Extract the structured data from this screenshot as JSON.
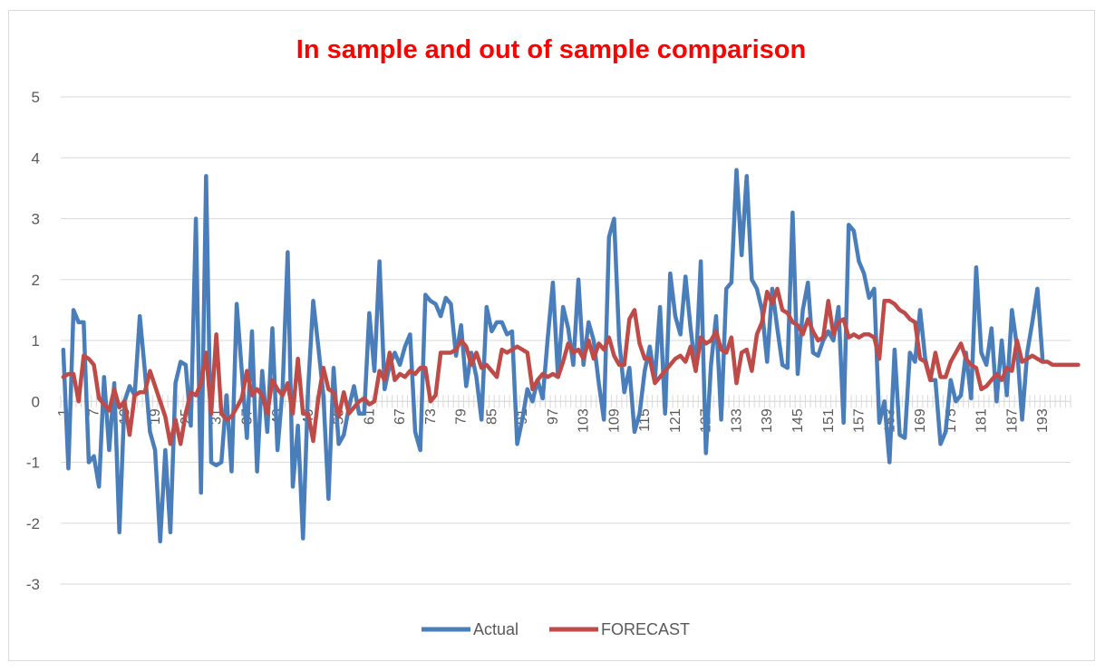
{
  "chart_data": {
    "type": "line",
    "title": "In sample and out of sample comparison",
    "xlabel": "",
    "ylabel": "",
    "ylim": [
      -3,
      5
    ],
    "yticks": [
      5,
      4,
      3,
      2,
      1,
      0,
      -1,
      -2,
      -3
    ],
    "x_tick_labels": [
      "1",
      "7",
      "13",
      "19",
      "25",
      "31",
      "37",
      "43",
      "49",
      "55",
      "61",
      "67",
      "73",
      "79",
      "85",
      "91",
      "97",
      "103",
      "109",
      "115",
      "121",
      "127",
      "133",
      "139",
      "145",
      "151",
      "157",
      "163",
      "169",
      "175",
      "181",
      "187",
      "193"
    ],
    "n_points": 198,
    "grid": true,
    "legend_position": "bottom",
    "series": [
      {
        "name": "Actual",
        "color": "#4a7ebb",
        "values": [
          0.85,
          -1.1,
          1.5,
          1.3,
          1.3,
          -1.0,
          -0.9,
          -1.4,
          0.4,
          -0.8,
          0.3,
          -2.15,
          0.0,
          0.25,
          0.1,
          1.4,
          0.5,
          -0.5,
          -0.8,
          -2.3,
          -0.8,
          -2.15,
          0.3,
          0.65,
          0.6,
          -0.4,
          3.0,
          -1.5,
          3.7,
          -1.0,
          -1.05,
          -1.0,
          0.1,
          -1.15,
          1.6,
          0.5,
          -0.6,
          1.15,
          -1.15,
          0.5,
          -0.5,
          1.2,
          -0.8,
          0.2,
          2.45,
          -1.4,
          -0.4,
          -2.25,
          0.2,
          1.65,
          0.9,
          0.1,
          -1.6,
          0.55,
          -0.7,
          -0.55,
          -0.1,
          0.25,
          -0.2,
          -0.2,
          1.45,
          0.5,
          2.3,
          0.2,
          0.6,
          0.8,
          0.6,
          0.9,
          1.1,
          -0.5,
          -0.8,
          1.75,
          1.65,
          1.6,
          1.4,
          1.7,
          1.6,
          0.75,
          1.25,
          0.25,
          0.8,
          0.4,
          -0.3,
          1.55,
          1.15,
          1.3,
          1.3,
          1.1,
          1.15,
          -0.7,
          -0.3,
          0.2,
          0.0,
          0.35,
          0.05,
          1.05,
          1.95,
          0.4,
          1.55,
          1.2,
          0.6,
          2.0,
          0.6,
          1.3,
          1.0,
          0.3,
          -0.3,
          2.7,
          3.0,
          1.0,
          0.15,
          0.55,
          -0.5,
          -0.2,
          0.5,
          0.9,
          0.35,
          1.55,
          -0.2,
          2.1,
          1.4,
          1.1,
          2.05,
          1.2,
          0.5,
          2.3,
          -0.85,
          0.6,
          1.4,
          -0.3,
          1.85,
          1.95,
          3.8,
          2.4,
          3.7,
          2.0,
          1.85,
          1.5,
          0.65,
          1.85,
          1.2,
          0.6,
          0.55,
          3.1,
          0.45,
          1.5,
          1.95,
          0.8,
          0.75,
          1.0,
          1.15,
          1.0,
          1.55,
          -0.35,
          2.9,
          2.8,
          2.3,
          2.1,
          1.7,
          1.85,
          -0.35,
          0.0,
          -1.0,
          0.85,
          -0.55,
          -0.6,
          0.8,
          0.65,
          1.5,
          0.7,
          0.35,
          0.35,
          -0.7,
          -0.5,
          0.35,
          0.0,
          0.1,
          0.8,
          0.05,
          2.2,
          0.8,
          0.6,
          1.2,
          0.0,
          1.0,
          0.1,
          1.5,
          0.9,
          -0.3,
          0.8,
          1.3,
          1.85,
          0.7
        ]
      },
      {
        "name": "FORECAST",
        "color": "#be4b48",
        "values": [
          0.4,
          0.45,
          0.45,
          0.0,
          0.75,
          0.7,
          0.6,
          0.05,
          -0.05,
          -0.15,
          0.2,
          -0.1,
          0.0,
          -0.55,
          0.1,
          0.15,
          0.15,
          0.5,
          0.25,
          0.0,
          -0.25,
          -0.7,
          -0.3,
          -0.7,
          -0.2,
          0.15,
          0.1,
          0.3,
          0.8,
          -0.2,
          1.1,
          -0.2,
          -0.3,
          -0.25,
          -0.1,
          0.05,
          0.5,
          0.1,
          0.2,
          0.1,
          -0.2,
          0.35,
          0.2,
          0.1,
          0.3,
          -0.2,
          0.7,
          -0.2,
          -0.2,
          -0.65,
          0.05,
          0.55,
          0.2,
          0.15,
          -0.25,
          0.15,
          -0.2,
          -0.1,
          0.0,
          0.05,
          -0.05,
          0.0,
          0.5,
          0.35,
          0.8,
          0.35,
          0.45,
          0.4,
          0.5,
          0.45,
          0.55,
          0.55,
          0.0,
          0.1,
          0.8,
          0.8,
          0.8,
          0.85,
          1.0,
          0.9,
          0.6,
          0.8,
          0.55,
          0.6,
          0.5,
          0.4,
          0.85,
          0.8,
          0.85,
          0.9,
          0.85,
          0.8,
          0.2,
          0.35,
          0.45,
          0.4,
          0.45,
          0.4,
          0.65,
          0.95,
          0.8,
          0.85,
          0.7,
          1.0,
          0.7,
          0.95,
          0.85,
          1.05,
          0.75,
          0.6,
          0.6,
          1.35,
          1.5,
          0.95,
          0.7,
          0.7,
          0.3,
          0.4,
          0.5,
          0.6,
          0.7,
          0.75,
          0.65,
          0.9,
          0.5,
          1.05,
          0.95,
          1.0,
          1.15,
          0.85,
          0.8,
          1.05,
          0.3,
          0.8,
          0.85,
          0.5,
          1.1,
          1.3,
          1.8,
          1.6,
          1.85,
          1.5,
          1.45,
          1.3,
          1.25,
          1.1,
          1.35,
          1.15,
          1.0,
          1.05,
          1.65,
          1.1,
          1.3,
          1.35,
          1.05,
          1.1,
          1.05,
          1.1,
          1.1,
          1.05,
          0.7,
          1.65,
          1.65,
          1.6,
          1.5,
          1.45,
          1.35,
          1.3,
          0.7,
          0.65,
          0.35,
          0.8,
          0.4,
          0.4,
          0.65,
          0.8,
          0.95,
          0.7,
          0.6,
          0.55,
          0.2,
          0.25,
          0.35,
          0.45,
          0.35,
          0.55,
          0.5,
          1.0,
          0.65,
          0.7,
          0.75,
          0.7,
          0.65,
          0.65,
          0.6,
          0.6,
          0.6,
          0.6,
          0.6,
          0.6
        ]
      }
    ]
  }
}
